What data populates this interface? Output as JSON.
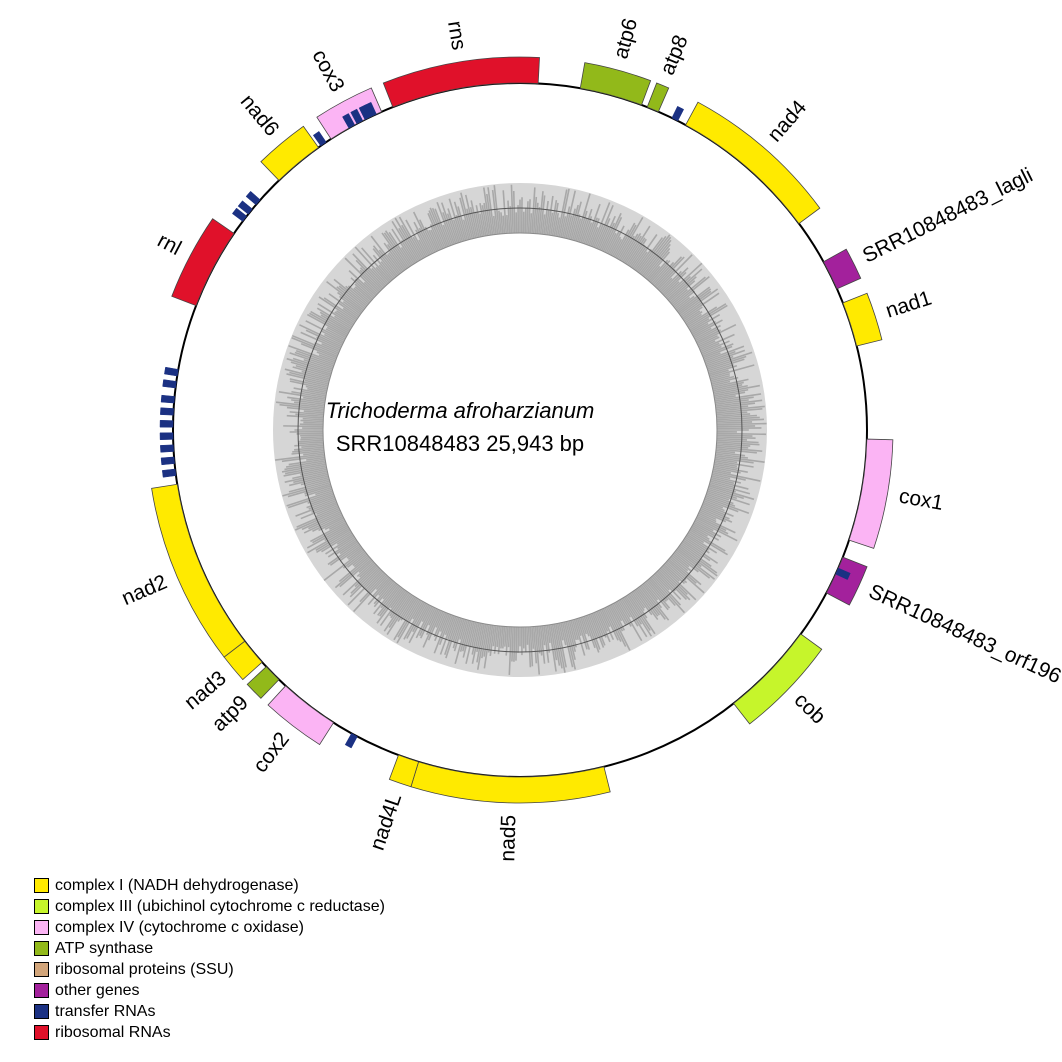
{
  "genome": {
    "organism": "Trichoderma afroharzianum",
    "id_line": "SRR10848483  25,943 bp"
  },
  "colors": {
    "complex_I": "#ffea00",
    "complex_III": "#c6f52b",
    "complex_IV": "#fbb4f4",
    "atp": "#92b91a",
    "ribosomal_proteins": "#d2a57a",
    "other": "#a3219c",
    "trna": "#1b3183",
    "rrna": "#e0112a",
    "gc_light": "#d6d6d6",
    "gc_dark": "#a8a8a8"
  },
  "genes": [
    {
      "name": "rns",
      "start_deg": -21.5,
      "end_deg": 3.0,
      "strand": "out",
      "cat": "rrna"
    },
    {
      "name": "atp6",
      "start_deg": 10.0,
      "end_deg": 20.5,
      "strand": "out",
      "cat": "atp"
    },
    {
      "name": "atp8",
      "start_deg": 21.5,
      "end_deg": 23.5,
      "strand": "out",
      "cat": "atp"
    },
    {
      "name": "nad4",
      "start_deg": 28.5,
      "end_deg": 53.5,
      "strand": "out",
      "cat": "complex_I"
    },
    {
      "name": "SRR10848483_lagli",
      "start_deg": 61.0,
      "end_deg": 66.0,
      "strand": "out",
      "cat": "other"
    },
    {
      "name": "nad1",
      "start_deg": 68.5,
      "end_deg": 76.0,
      "strand": "out",
      "cat": "complex_I"
    },
    {
      "name": "cox1",
      "start_deg": 91.5,
      "end_deg": 108.5,
      "strand": "out",
      "cat": "complex_IV"
    },
    {
      "name": "SRR10848483_orf196",
      "start_deg": 111.5,
      "end_deg": 118.0,
      "strand": "out",
      "cat": "other"
    },
    {
      "name": "cob",
      "start_deg": 126.0,
      "end_deg": 142.0,
      "strand": "out",
      "cat": "complex_III"
    },
    {
      "name": "nad5",
      "start_deg": 166.0,
      "end_deg": 197.0,
      "strand": "out",
      "cat": "complex_I"
    },
    {
      "name": "nad4L",
      "start_deg": 197.0,
      "end_deg": 200.5,
      "strand": "out",
      "cat": "complex_I"
    },
    {
      "name": "cox2",
      "start_deg": 212.5,
      "end_deg": 222.5,
      "strand": "out",
      "cat": "complex_IV"
    },
    {
      "name": "atp9",
      "start_deg": 224.0,
      "end_deg": 227.0,
      "strand": "out",
      "cat": "atp"
    },
    {
      "name": "nad3",
      "start_deg": 228.0,
      "end_deg": 232.5,
      "strand": "out",
      "cat": "complex_I"
    },
    {
      "name": "nad2",
      "start_deg": 232.5,
      "end_deg": 261.0,
      "strand": "out",
      "cat": "complex_I"
    },
    {
      "name": "rnl",
      "start_deg": 291.0,
      "end_deg": 304.5,
      "strand": "out",
      "cat": "rrna"
    },
    {
      "name": "nad6",
      "start_deg": 316.0,
      "end_deg": 324.5,
      "strand": "out",
      "cat": "complex_I"
    },
    {
      "name": "cox3",
      "start_deg": 327.0,
      "end_deg": 336.5,
      "strand": "out",
      "cat": "complex_IV"
    }
  ],
  "trnas_deg": [
    -25.0,
    -26.0,
    -27.5,
    -29.0,
    26.5,
    114.0,
    208.5,
    263.0,
    265.0,
    267.0,
    269.0,
    271.0,
    273.0,
    275.0,
    277.5,
    279.5,
    307.5,
    309.0,
    311.0,
    325.5
  ],
  "legend": [
    {
      "label": "complex I (NADH dehydrogenase)",
      "cat": "complex_I"
    },
    {
      "label": "complex III (ubichinol cytochrome c reductase)",
      "cat": "complex_III"
    },
    {
      "label": "complex IV (cytochrome c oxidase)",
      "cat": "complex_IV"
    },
    {
      "label": "ATP synthase",
      "cat": "atp"
    },
    {
      "label": "ribosomal proteins (SSU)",
      "cat": "ribosomal_proteins"
    },
    {
      "label": "other genes",
      "cat": "other"
    },
    {
      "label": "transfer RNAs",
      "cat": "trna"
    },
    {
      "label": "ribosomal RNAs",
      "cat": "rrna"
    }
  ]
}
